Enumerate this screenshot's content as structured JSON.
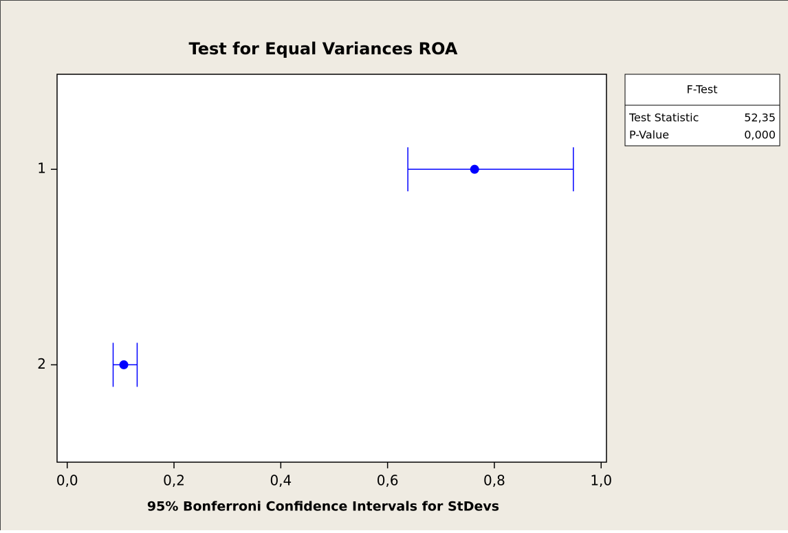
{
  "chart_data": {
    "type": "interval",
    "title": "Test for Equal Variances ROA",
    "xlabel": "95% Bonferroni Confidence Intervals for StDevs",
    "categories": [
      "1",
      "2"
    ],
    "values": [
      0.763,
      0.106
    ],
    "lower": [
      0.638,
      0.086
    ],
    "upper": [
      0.948,
      0.131
    ],
    "color": "#0000ff",
    "xlim": [
      -0.019,
      1.01
    ],
    "xticks": [
      {
        "value": 0,
        "label": "0,0"
      },
      {
        "value": 0.2,
        "label": "0,2"
      },
      {
        "value": 0.4,
        "label": "0,4"
      },
      {
        "value": 0.6,
        "label": "0,6"
      },
      {
        "value": 0.8,
        "label": "0,8"
      },
      {
        "value": 1,
        "label": "1,0"
      }
    ],
    "stats_box": {
      "title": "F-Test",
      "rows": [
        [
          "Test Statistic",
          "52,35"
        ],
        [
          "P-Value",
          "0,000"
        ]
      ]
    }
  }
}
